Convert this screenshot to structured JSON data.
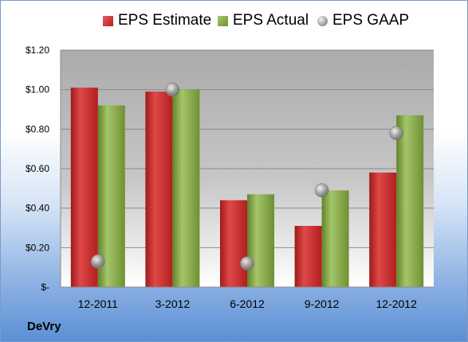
{
  "colors": {
    "estimate": "#c0262a",
    "actual": "#7f9f3a",
    "gaap": "#9a9a9a"
  },
  "company": "DeVry",
  "chart_data": {
    "type": "bar",
    "categories": [
      "12-2011",
      "3-2012",
      "6-2012",
      "9-2012",
      "12-2012"
    ],
    "series": [
      {
        "name": "EPS Estimate",
        "type": "bar",
        "values": [
          1.01,
          0.99,
          0.44,
          0.31,
          0.58
        ]
      },
      {
        "name": "EPS Actual",
        "type": "bar",
        "values": [
          0.92,
          1.0,
          0.47,
          0.49,
          0.87
        ]
      },
      {
        "name": "EPS GAAP",
        "type": "scatter",
        "values": [
          0.13,
          1.0,
          0.12,
          0.49,
          0.78
        ]
      }
    ],
    "ylim": [
      0,
      1.2
    ],
    "yticks": [
      0,
      0.2,
      0.4,
      0.6,
      0.8,
      1.0,
      1.2
    ],
    "ytick_labels": [
      "$-",
      "$0.20",
      "$0.40",
      "$0.60",
      "$0.80",
      "$1.00",
      "$1.20"
    ],
    "legend_position": "top",
    "grid": true
  }
}
